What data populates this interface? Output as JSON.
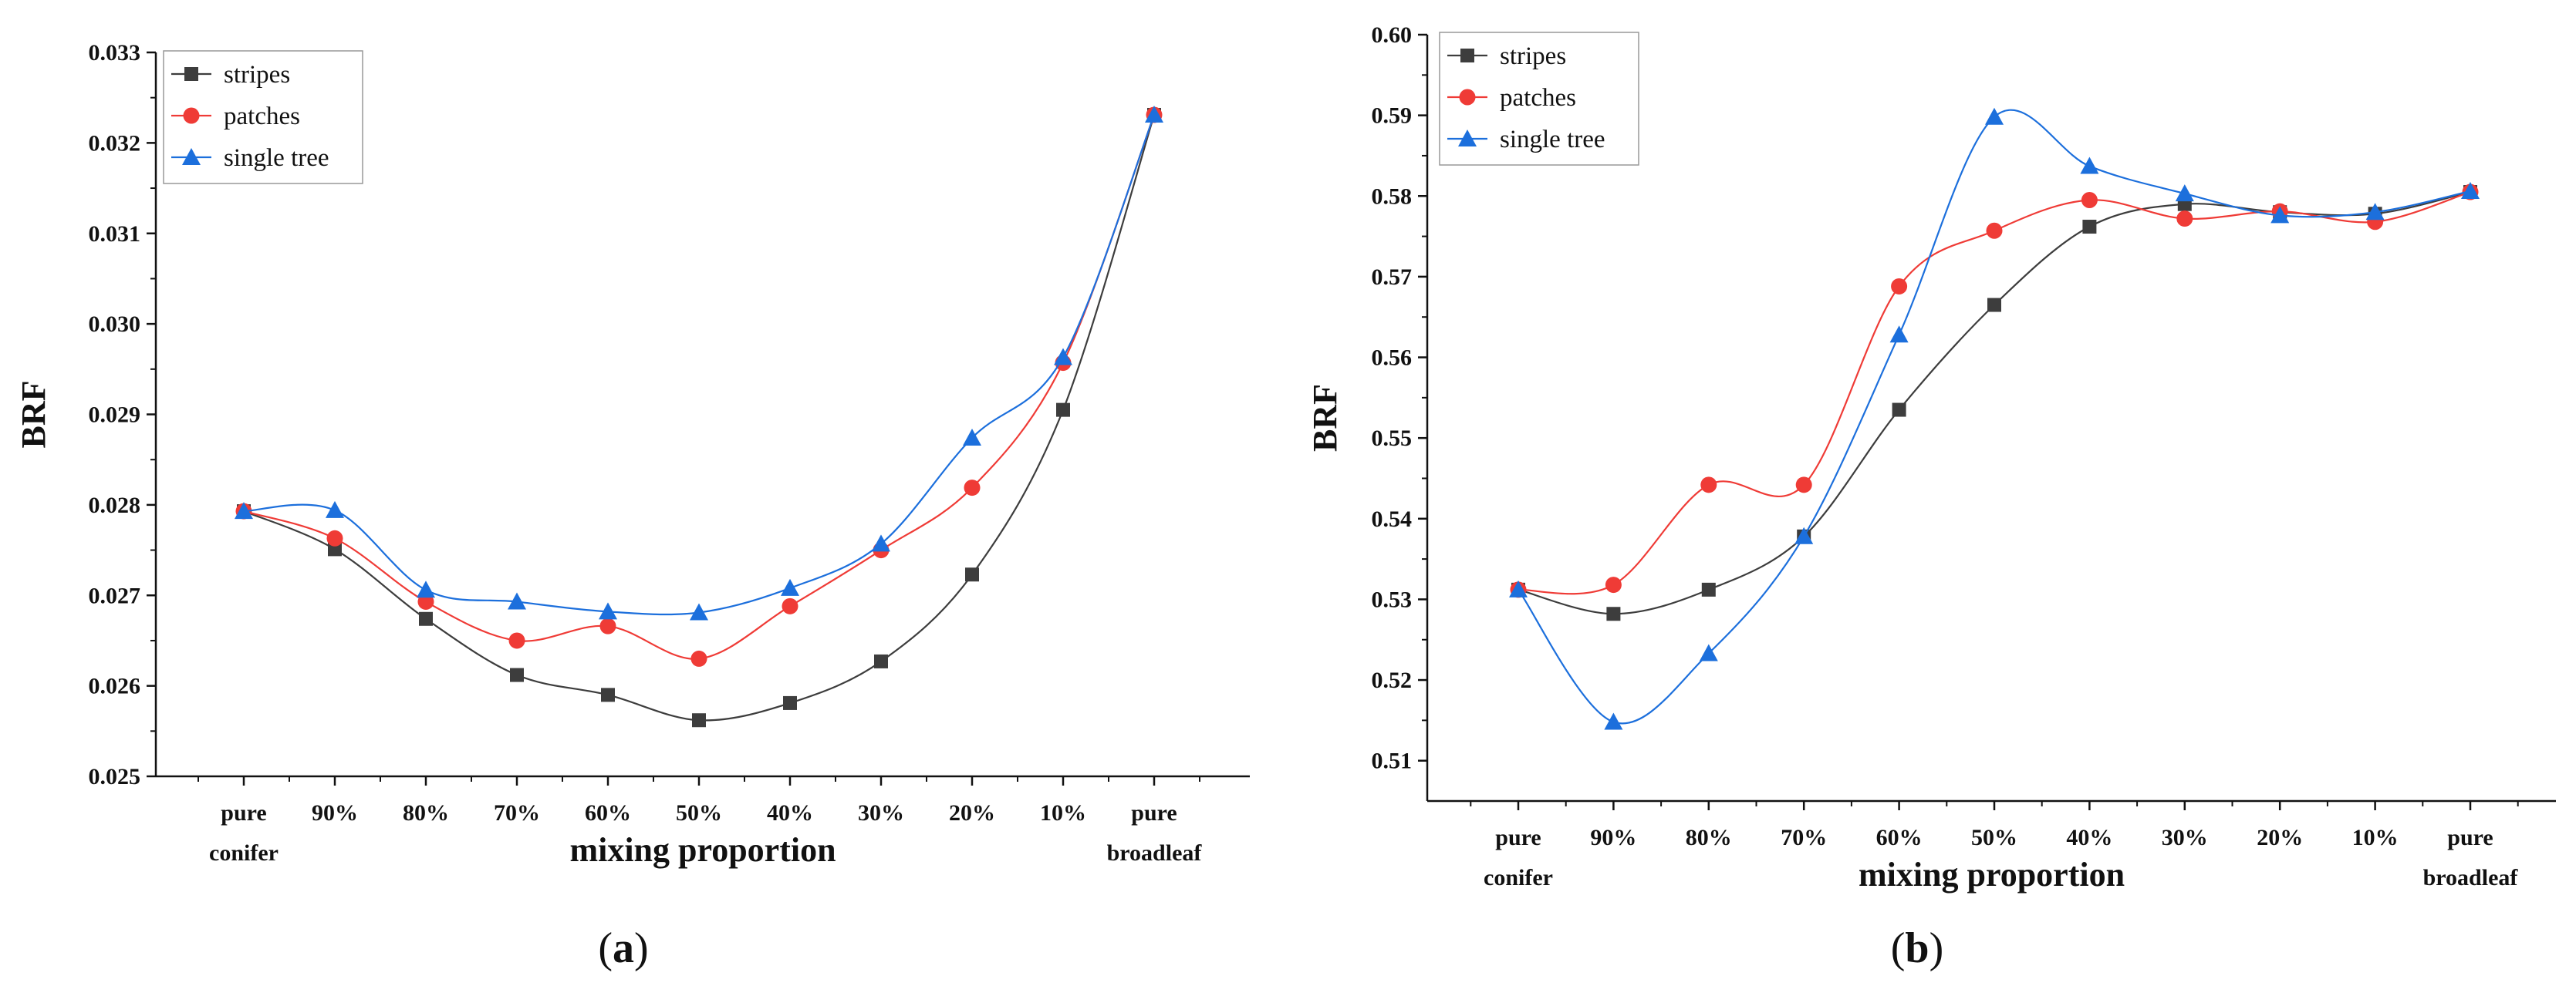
{
  "chart_data": [
    {
      "type": "line",
      "panel_label": "a",
      "xlabel": "mixing proportion",
      "ylabel": "BRF",
      "categories": [
        "pure conifer",
        "90%",
        "80%",
        "70%",
        "60%",
        "50%",
        "40%",
        "30%",
        "20%",
        "10%",
        "pure broadleaf"
      ],
      "category_lines": [
        [
          "pure",
          "conifer"
        ],
        [
          "90%"
        ],
        [
          "80%"
        ],
        [
          "70%"
        ],
        [
          "60%"
        ],
        [
          "50%"
        ],
        [
          "40%"
        ],
        [
          "30%"
        ],
        [
          "20%"
        ],
        [
          "10%"
        ],
        [
          "pure",
          "broadleaf"
        ]
      ],
      "ylim": [
        0.025,
        0.033
      ],
      "yticks": [
        0.025,
        0.026,
        0.027,
        0.028,
        0.029,
        0.03,
        0.031,
        0.032,
        0.033
      ],
      "ytick_labels": [
        "0.025",
        "0.026",
        "0.027",
        "0.028",
        "0.029",
        "0.030",
        "0.031",
        "0.032",
        "0.033"
      ],
      "legend_position": "top-left",
      "series": [
        {
          "name": "stripes",
          "color": "#3d3d3d",
          "marker": "square",
          "values": [
            0.02793,
            0.02751,
            0.02674,
            0.02612,
            0.0259,
            0.02562,
            0.02581,
            0.02627,
            0.02723,
            0.02905,
            0.03231
          ]
        },
        {
          "name": "patches",
          "color": "#ef3b36",
          "marker": "circle",
          "values": [
            0.02793,
            0.02763,
            0.02693,
            0.0265,
            0.02666,
            0.0263,
            0.02688,
            0.0275,
            0.02819,
            0.02957,
            0.03231
          ]
        },
        {
          "name": "single tree",
          "color": "#1c6fdc",
          "marker": "triangle",
          "values": [
            0.02793,
            0.02794,
            0.02706,
            0.02693,
            0.02682,
            0.02681,
            0.02708,
            0.02757,
            0.02874,
            0.02963,
            0.03231
          ]
        }
      ]
    },
    {
      "type": "line",
      "panel_label": "b",
      "xlabel": "mixing proportion",
      "ylabel": "BRF",
      "categories": [
        "pure conifer",
        "90%",
        "80%",
        "70%",
        "60%",
        "50%",
        "40%",
        "30%",
        "20%",
        "10%",
        "pure broadleaf"
      ],
      "category_lines": [
        [
          "pure",
          "conifer"
        ],
        [
          "90%"
        ],
        [
          "80%"
        ],
        [
          "70%"
        ],
        [
          "60%"
        ],
        [
          "50%"
        ],
        [
          "40%"
        ],
        [
          "30%"
        ],
        [
          "20%"
        ],
        [
          "10%"
        ],
        [
          "pure",
          "broadleaf"
        ]
      ],
      "ylim": [
        0.505,
        0.6
      ],
      "yticks": [
        0.51,
        0.52,
        0.53,
        0.54,
        0.55,
        0.56,
        0.57,
        0.58,
        0.59,
        0.6
      ],
      "ytick_labels": [
        "0.51",
        "0.52",
        "0.53",
        "0.54",
        "0.55",
        "0.56",
        "0.57",
        "0.58",
        "0.59",
        "0.60"
      ],
      "legend_position": "top-left",
      "series": [
        {
          "name": "stripes",
          "color": "#3d3d3d",
          "marker": "square",
          "values": [
            0.5312,
            0.5282,
            0.5312,
            0.5378,
            0.5535,
            0.5665,
            0.5762,
            0.579,
            0.578,
            0.5778,
            0.5805
          ]
        },
        {
          "name": "patches",
          "color": "#ef3b36",
          "marker": "circle",
          "values": [
            0.5312,
            0.5318,
            0.5442,
            0.5442,
            0.5688,
            0.5757,
            0.5795,
            0.5772,
            0.5781,
            0.5768,
            0.5805
          ]
        },
        {
          "name": "single tree",
          "color": "#1c6fdc",
          "marker": "triangle",
          "values": [
            0.5312,
            0.5148,
            0.5233,
            0.5378,
            0.5628,
            0.5898,
            0.5837,
            0.5803,
            0.5776,
            0.578,
            0.5806
          ]
        }
      ]
    }
  ]
}
